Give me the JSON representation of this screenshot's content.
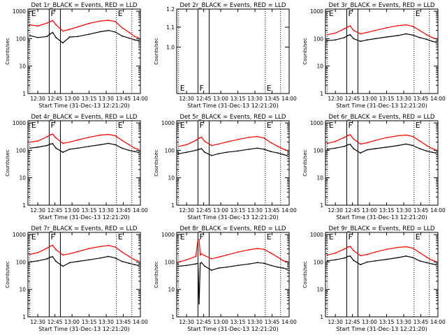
{
  "chart_data": [
    {
      "type": "line",
      "title": "Det 1r_BLACK = Events, RED = LLD",
      "xlabel": "Start Time (31-Dec-13 12:21:20)",
      "ylabel": "Counts/sec",
      "yscale": "log",
      "ylim": [
        1,
        1200
      ],
      "xlim": [
        "12:21:20",
        "14:00"
      ],
      "x_ticks": [
        "12:30",
        "12:45",
        "13:00",
        "13:15",
        "13:30",
        "13:45",
        "14:00"
      ],
      "y_ticks": [
        "1",
        "10",
        "100",
        "1000"
      ],
      "markers": [
        {
          "label": "E",
          "x": "12:23"
        },
        {
          "label": "F",
          "x": "12:40"
        },
        {
          "label": "E",
          "x": "13:39"
        }
      ],
      "x": [
        "12:23",
        "12:30",
        "12:38",
        "12:41",
        "12:43",
        "12:46",
        "12:52",
        "12:58",
        "13:05",
        "13:15",
        "13:25",
        "13:32",
        "13:38",
        "13:44",
        "13:50",
        "13:55",
        "13:58"
      ],
      "series": [
        {
          "name": "BLACK = Events",
          "color": "#000000",
          "values": [
            130,
            110,
            120,
            150,
            170,
            110,
            70,
            115,
            120,
            145,
            180,
            200,
            175,
            125,
            105,
            90,
            85
          ]
        },
        {
          "name": "RED = LLD",
          "color": "#ff0000",
          "values": [
            320,
            290,
            370,
            420,
            460,
            320,
            190,
            220,
            270,
            360,
            440,
            470,
            420,
            250,
            170,
            120,
            110
          ]
        }
      ]
    },
    {
      "type": "line",
      "title": "Det 2r_BLACK = Events, RED = LLD",
      "xlabel": "Start Time (31-Dec-13 12:21:20)",
      "ylabel": "Counts/sec",
      "yscale": "log",
      "ylim": [
        0.8,
        1.2
      ],
      "xlim": [
        "12:21:20",
        "14:00"
      ],
      "x_ticks": [
        "12:30",
        "12:45",
        "13:00",
        "13:15",
        "13:30",
        "13:45",
        "14:00"
      ],
      "y_ticks": [
        "1.0",
        "1.1",
        "1.2"
      ],
      "markers": [
        {
          "label": "E",
          "x": "12:23"
        },
        {
          "label": "F",
          "x": "12:40"
        },
        {
          "label": "E",
          "x": "13:39"
        }
      ],
      "x": [],
      "series": []
    },
    {
      "type": "line",
      "title": "Det 3r_BLACK = Events, RED = LLD",
      "xlabel": "Start Time (31-Dec-13 12:21:20)",
      "ylabel": "Counts/sec",
      "yscale": "log",
      "ylim": [
        1,
        1200
      ],
      "xlim": [
        "12:21:20",
        "14:00"
      ],
      "x_ticks": [
        "12:30",
        "12:45",
        "13:00",
        "13:15",
        "13:30",
        "13:45",
        "14:00"
      ],
      "y_ticks": [
        "1",
        "10",
        "100",
        "1000"
      ],
      "markers": [
        {
          "label": "E",
          "x": "12:23"
        },
        {
          "label": "F",
          "x": "12:40"
        },
        {
          "label": "E",
          "x": "13:39"
        }
      ],
      "x": [
        "12:23",
        "12:30",
        "12:38",
        "12:41",
        "12:43",
        "12:46",
        "12:52",
        "12:58",
        "13:05",
        "13:15",
        "13:25",
        "13:32",
        "13:38",
        "13:44",
        "13:50",
        "13:55",
        "13:58"
      ],
      "series": [
        {
          "name": "BLACK = Events",
          "color": "#000000",
          "values": [
            85,
            90,
            110,
            130,
            140,
            100,
            80,
            90,
            100,
            115,
            130,
            150,
            135,
            110,
            95,
            80,
            75
          ]
        },
        {
          "name": "RED = LLD",
          "color": "#ff0000",
          "values": [
            140,
            160,
            230,
            270,
            290,
            200,
            150,
            170,
            200,
            250,
            300,
            320,
            280,
            200,
            140,
            110,
            100
          ]
        }
      ]
    },
    {
      "type": "line",
      "title": "Det 4r_BLACK = Events, RED = LLD",
      "xlabel": "Start Time (31-Dec-13 12:21:20)",
      "ylabel": "Counts/sec",
      "yscale": "log",
      "ylim": [
        1,
        1200
      ],
      "xlim": [
        "12:21:20",
        "14:00"
      ],
      "x_ticks": [
        "12:30",
        "12:45",
        "13:00",
        "13:15",
        "13:30",
        "13:45",
        "14:00"
      ],
      "y_ticks": [
        "1",
        "10",
        "100",
        "1000"
      ],
      "markers": [
        {
          "label": "E",
          "x": "12:23"
        },
        {
          "label": "F",
          "x": "12:40"
        },
        {
          "label": "E",
          "x": "13:39"
        }
      ],
      "x": [
        "12:23",
        "12:30",
        "12:38",
        "12:41",
        "12:43",
        "12:46",
        "12:52",
        "12:58",
        "13:05",
        "13:15",
        "13:25",
        "13:32",
        "13:38",
        "13:44",
        "13:50",
        "13:55",
        "13:58"
      ],
      "series": [
        {
          "name": "BLACK = Events",
          "color": "#000000",
          "values": [
            120,
            130,
            150,
            170,
            175,
            120,
            85,
            110,
            120,
            140,
            160,
            180,
            160,
            120,
            100,
            90,
            85
          ]
        },
        {
          "name": "RED = LLD",
          "color": "#ff0000",
          "values": [
            200,
            220,
            310,
            370,
            390,
            280,
            180,
            200,
            240,
            300,
            360,
            380,
            340,
            230,
            160,
            120,
            110
          ]
        }
      ]
    },
    {
      "type": "line",
      "title": "Det 5r_BLACK = Events, RED = LLD",
      "xlabel": "Start Time (31-Dec-13 12:21:20)",
      "ylabel": "Counts/sec",
      "yscale": "log",
      "ylim": [
        1,
        1200
      ],
      "xlim": [
        "12:21:20",
        "14:00"
      ],
      "x_ticks": [
        "12:30",
        "12:45",
        "13:00",
        "13:15",
        "13:30",
        "13:45",
        "14:00"
      ],
      "y_ticks": [
        "1",
        "10",
        "100",
        "1000"
      ],
      "markers": [
        {
          "label": "E",
          "x": "12:23"
        },
        {
          "label": "F",
          "x": "12:40"
        },
        {
          "label": "E",
          "x": "13:39"
        }
      ],
      "x": [
        "12:23",
        "12:30",
        "12:38",
        "12:41",
        "12:43",
        "12:46",
        "12:52",
        "12:58",
        "13:05",
        "13:15",
        "13:25",
        "13:32",
        "13:38",
        "13:44",
        "13:50",
        "13:55",
        "13:58"
      ],
      "series": [
        {
          "name": "BLACK = Events",
          "color": "#000000",
          "values": [
            75,
            85,
            100,
            110,
            115,
            85,
            65,
            75,
            85,
            95,
            110,
            120,
            110,
            90,
            80,
            70,
            65
          ]
        },
        {
          "name": "RED = LLD",
          "color": "#ff0000",
          "values": [
            140,
            160,
            230,
            280,
            300,
            210,
            150,
            170,
            200,
            250,
            300,
            320,
            280,
            190,
            140,
            110,
            100
          ]
        }
      ]
    },
    {
      "type": "line",
      "title": "Det 6r_BLACK = Events, RED = LLD",
      "xlabel": "Start Time (31-Dec-13 12:21:20)",
      "ylabel": "Counts/sec",
      "yscale": "log",
      "ylim": [
        1,
        1200
      ],
      "xlim": [
        "12:21:20",
        "14:00"
      ],
      "x_ticks": [
        "12:30",
        "12:45",
        "13:00",
        "13:15",
        "13:30",
        "13:45",
        "14:00"
      ],
      "y_ticks": [
        "1",
        "10",
        "100",
        "1000"
      ],
      "markers": [
        {
          "label": "E",
          "x": "12:23"
        },
        {
          "label": "F",
          "x": "12:40"
        },
        {
          "label": "E",
          "x": "13:39"
        }
      ],
      "x": [
        "12:23",
        "12:30",
        "12:38",
        "12:41",
        "12:43",
        "12:46",
        "12:52",
        "12:58",
        "13:05",
        "13:15",
        "13:25",
        "13:32",
        "13:38",
        "13:44",
        "13:50",
        "13:55",
        "13:58"
      ],
      "series": [
        {
          "name": "BLACK = Events",
          "color": "#000000",
          "values": [
            110,
            120,
            140,
            160,
            165,
            115,
            80,
            105,
            115,
            130,
            150,
            170,
            150,
            115,
            95,
            85,
            80
          ]
        },
        {
          "name": "RED = LLD",
          "color": "#ff0000",
          "values": [
            180,
            210,
            300,
            350,
            370,
            260,
            170,
            190,
            230,
            290,
            340,
            360,
            320,
            220,
            150,
            115,
            105
          ]
        }
      ]
    },
    {
      "type": "line",
      "title": "Det 7r_BLACK = Events, RED = LLD",
      "xlabel": "Start Time (31-Dec-13 12:21:20)",
      "ylabel": "Counts/sec",
      "yscale": "log",
      "ylim": [
        1,
        1200
      ],
      "xlim": [
        "12:21:20",
        "14:00"
      ],
      "x_ticks": [
        "12:30",
        "12:45",
        "13:00",
        "13:15",
        "13:30",
        "13:45",
        "14:00"
      ],
      "y_ticks": [
        "1",
        "10",
        "100",
        "1000"
      ],
      "markers": [
        {
          "label": "E",
          "x": "12:23"
        },
        {
          "label": "F",
          "x": "12:40"
        },
        {
          "label": "E",
          "x": "13:39"
        }
      ],
      "x": [
        "12:23",
        "12:30",
        "12:38",
        "12:41",
        "12:43",
        "12:46",
        "12:52",
        "12:58",
        "13:05",
        "13:15",
        "13:25",
        "13:32",
        "13:38",
        "13:44",
        "13:50",
        "13:55",
        "13:58"
      ],
      "series": [
        {
          "name": "BLACK = Events",
          "color": "#000000",
          "values": [
            100,
            110,
            130,
            150,
            155,
            105,
            70,
            95,
            105,
            120,
            140,
            160,
            140,
            105,
            90,
            80,
            75
          ]
        },
        {
          "name": "RED = LLD",
          "color": "#ff0000",
          "values": [
            190,
            220,
            320,
            380,
            400,
            280,
            180,
            200,
            240,
            310,
            370,
            400,
            350,
            230,
            160,
            120,
            110
          ]
        }
      ]
    },
    {
      "type": "line",
      "title": "Det 8r_BLACK = Events, RED = LLD",
      "xlabel": "Start Time (31-Dec-13 12:21:20)",
      "ylabel": "Counts/sec",
      "yscale": "log",
      "ylim": [
        1,
        1200
      ],
      "xlim": [
        "12:21:20",
        "14:00"
      ],
      "x_ticks": [
        "12:30",
        "12:45",
        "13:00",
        "13:15",
        "13:30",
        "13:45",
        "14:00"
      ],
      "y_ticks": [
        "1",
        "10",
        "100",
        "1000"
      ],
      "markers": [
        {
          "label": "E",
          "x": "12:23"
        },
        {
          "label": "F",
          "x": "12:40"
        },
        {
          "label": "E",
          "x": "13:39"
        }
      ],
      "x": [
        "12:23",
        "12:30",
        "12:38",
        "12:40",
        "12:41",
        "12:42",
        "12:43",
        "12:46",
        "12:52",
        "12:58",
        "13:05",
        "13:15",
        "13:25",
        "13:32",
        "13:38",
        "13:44",
        "13:50",
        "13:55",
        "13:58"
      ],
      "series": [
        {
          "name": "BLACK = Events",
          "color": "#000000",
          "values": [
            70,
            75,
            85,
            90,
            3,
            90,
            95,
            70,
            50,
            60,
            65,
            75,
            85,
            95,
            90,
            75,
            65,
            60,
            55
          ]
        },
        {
          "name": "RED = LLD",
          "color": "#ff0000",
          "values": [
            100,
            120,
            160,
            650,
            650,
            180,
            200,
            170,
            130,
            150,
            180,
            230,
            280,
            310,
            290,
            210,
            150,
            110,
            105
          ]
        }
      ]
    },
    {
      "type": "line",
      "title": "Det 9r_BLACK = Events, RED = LLD",
      "xlabel": "Start Time (31-Dec-13 12:21:20)",
      "ylabel": "Counts/sec",
      "yscale": "log",
      "ylim": [
        1,
        1200
      ],
      "xlim": [
        "12:21:20",
        "14:00"
      ],
      "x_ticks": [
        "12:30",
        "12:45",
        "13:00",
        "13:15",
        "13:30",
        "13:45",
        "14:00"
      ],
      "y_ticks": [
        "1",
        "10",
        "100",
        "1000"
      ],
      "markers": [
        {
          "label": "E",
          "x": "12:23"
        },
        {
          "label": "F",
          "x": "12:40"
        },
        {
          "label": "E",
          "x": "13:39"
        }
      ],
      "x": [
        "12:23",
        "12:30",
        "12:38",
        "12:41",
        "12:43",
        "12:46",
        "12:52",
        "12:58",
        "13:05",
        "13:15",
        "13:25",
        "13:32",
        "13:38",
        "13:44",
        "13:50",
        "13:55",
        "13:58"
      ],
      "series": [
        {
          "name": "BLACK = Events",
          "color": "#000000",
          "values": [
            110,
            120,
            140,
            160,
            165,
            115,
            80,
            100,
            110,
            125,
            145,
            165,
            145,
            110,
            95,
            85,
            80
          ]
        },
        {
          "name": "RED = LLD",
          "color": "#ff0000",
          "values": [
            180,
            210,
            300,
            350,
            370,
            260,
            170,
            190,
            230,
            290,
            340,
            360,
            320,
            220,
            150,
            115,
            105
          ]
        }
      ]
    }
  ]
}
